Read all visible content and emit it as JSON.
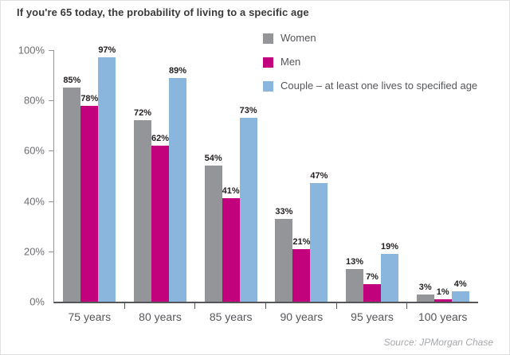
{
  "title": "If you're 65 today, the probability of living to a specific age",
  "source_label": "Source: JPMorgan Chase",
  "colors": {
    "women": "#939598",
    "men": "#c1027c",
    "couple": "#8ab5dd",
    "axis": "#939598",
    "baseline": "#55565a",
    "value_label": "#231f20",
    "tick_label": "#6d6e71",
    "title_text": "#3a3a3a",
    "source_text": "#a6a8ab"
  },
  "chart_data": {
    "type": "bar",
    "title": "If you're 65 today, the probability of living to a specific age",
    "categories": [
      "75 years",
      "80 years",
      "85 years",
      "90 years",
      "95 years",
      "100 years"
    ],
    "series": [
      {
        "name": "Women",
        "color": "#939598",
        "values": [
          85,
          72,
          54,
          33,
          13,
          3
        ]
      },
      {
        "name": "Men",
        "color": "#c1027c",
        "values": [
          78,
          62,
          41,
          21,
          7,
          1
        ]
      },
      {
        "name": "Couple – at least one lives to specified age",
        "color": "#8ab5dd",
        "values": [
          97,
          89,
          73,
          47,
          19,
          4
        ]
      }
    ],
    "legend": [
      "Women",
      "Men",
      "Couple – at least one lives to specified age"
    ],
    "legend_position": "top-right",
    "xlabel": "",
    "ylabel": "",
    "ylim": [
      0,
      100
    ],
    "yticks": [
      0,
      20,
      40,
      60,
      80,
      100
    ],
    "ytick_suffix": "%",
    "value_label_suffix": "%",
    "grid": false
  }
}
